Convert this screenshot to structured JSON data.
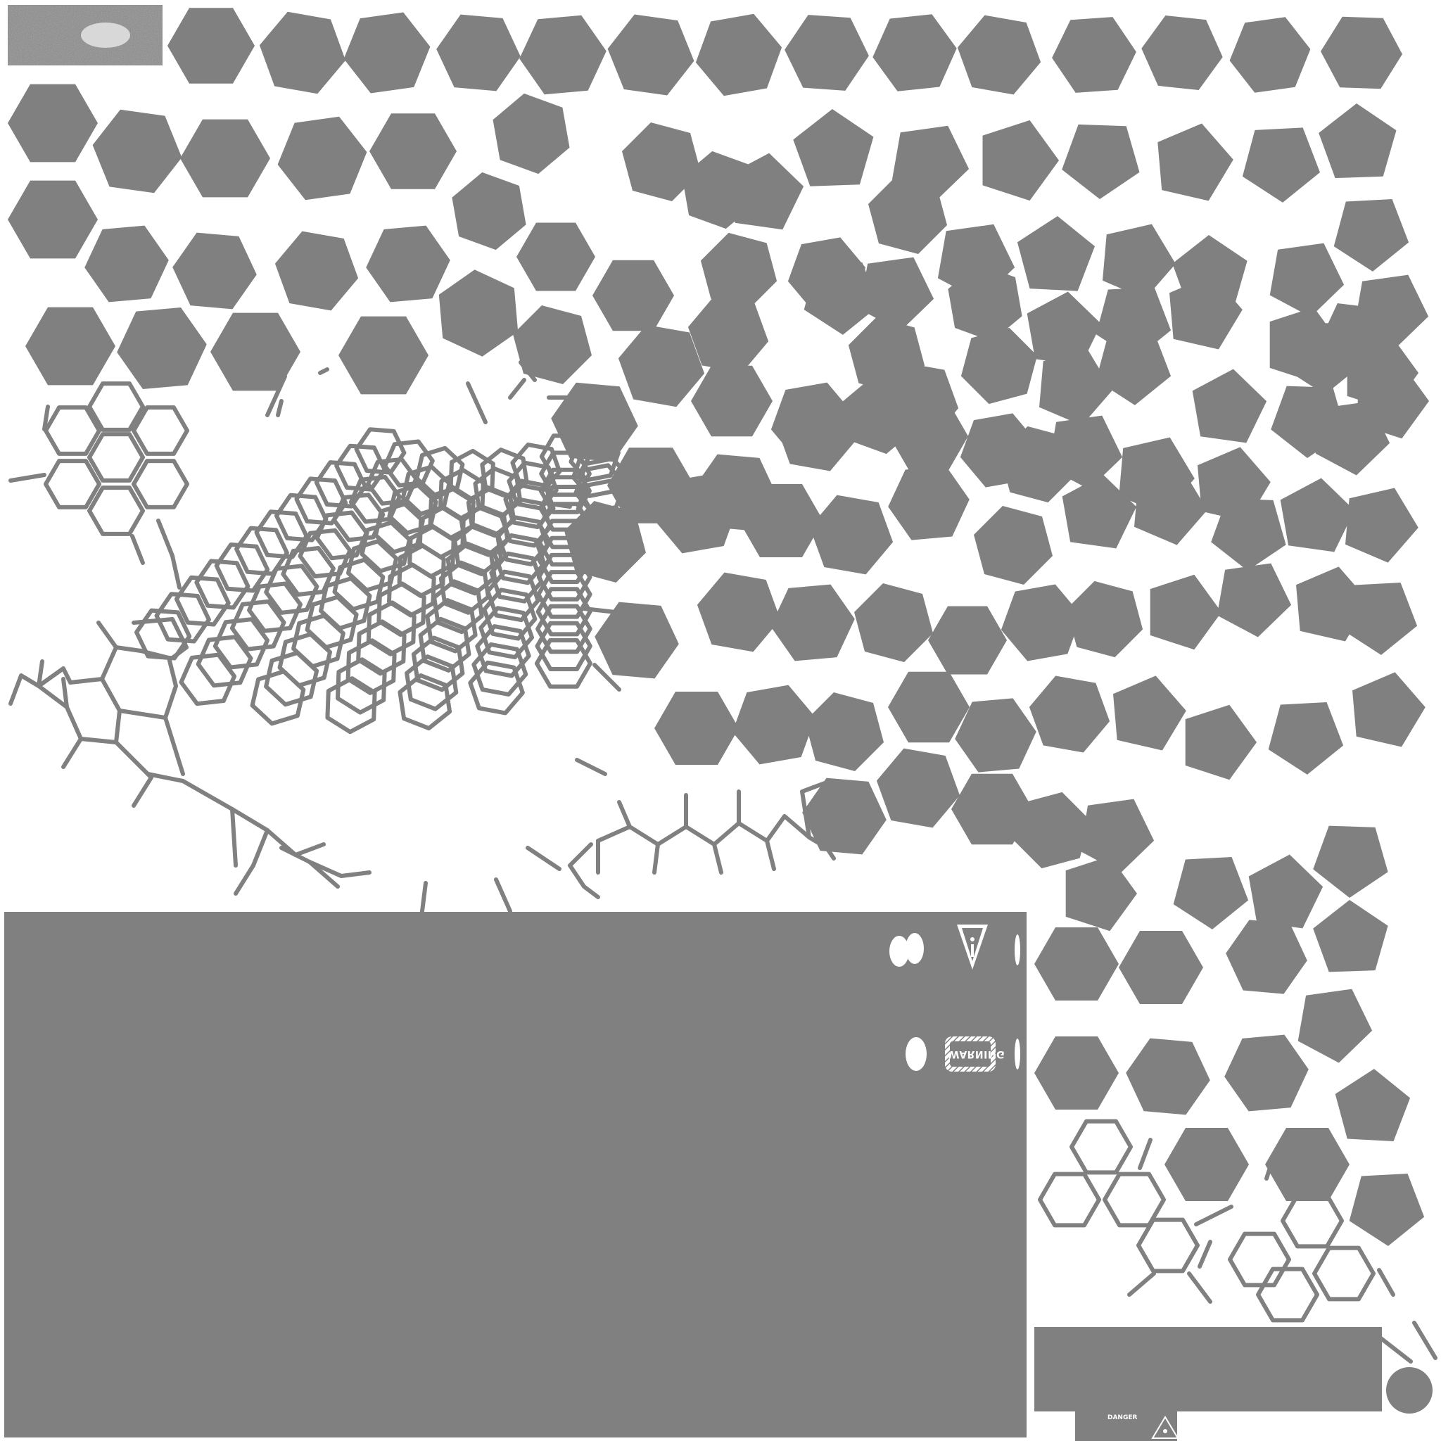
{
  "texture": {
    "fill_color": "#808080",
    "background_color": "#ffffff",
    "panel_mark_color": "#ffffff"
  },
  "labels": {
    "warning": "WARNING",
    "danger": "DANGER"
  },
  "icons": [
    "info-triangle-icon",
    "warning-sign-icon",
    "danger-triangle-icon",
    "noise-swatch-icon"
  ]
}
